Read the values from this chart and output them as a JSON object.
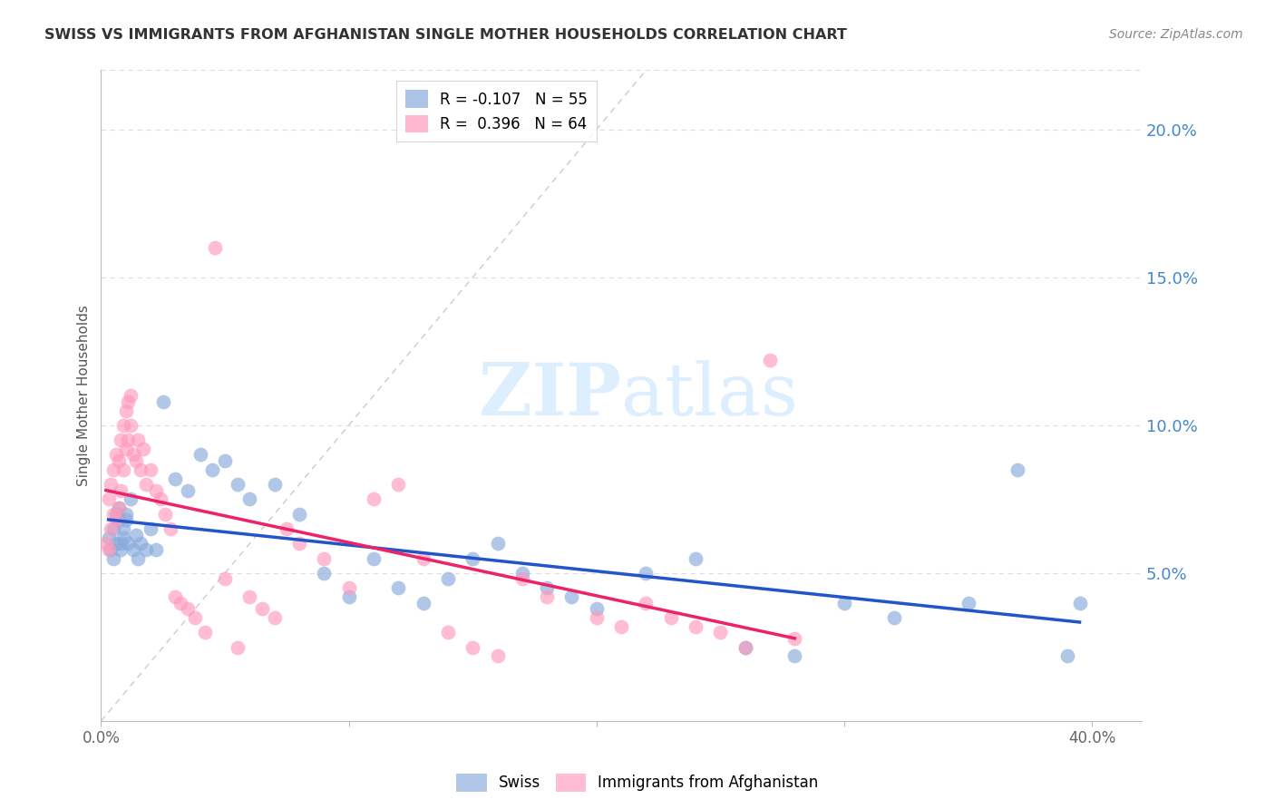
{
  "title": "SWISS VS IMMIGRANTS FROM AFGHANISTAN SINGLE MOTHER HOUSEHOLDS CORRELATION CHART",
  "source": "Source: ZipAtlas.com",
  "ylabel": "Single Mother Households",
  "ytick_labels": [
    "20.0%",
    "15.0%",
    "10.0%",
    "5.0%"
  ],
  "ytick_values": [
    0.2,
    0.15,
    0.1,
    0.05
  ],
  "xlim": [
    0.0,
    0.42
  ],
  "ylim": [
    0.0,
    0.22
  ],
  "xticks": [
    0.0,
    0.1,
    0.2,
    0.3,
    0.4
  ],
  "xtick_labels": [
    "0.0%",
    "",
    "",
    "",
    "40.0%"
  ],
  "swiss_color": "#88aadd",
  "afghan_color": "#ff99bb",
  "swiss_line_color": "#2255cc",
  "afghan_line_color": "#ee2266",
  "diagonal_line_color": "#cccccc",
  "grid_color": "#dddddd",
  "title_color": "#333333",
  "right_axis_color": "#4488cc",
  "watermark_color": "#ddeeff",
  "legend_r1": "R = -0.107",
  "legend_n1": "N = 55",
  "legend_r2": "R =  0.396",
  "legend_n2": "N = 64",
  "swiss_scatter_x": [
    0.003,
    0.004,
    0.005,
    0.005,
    0.006,
    0.006,
    0.007,
    0.007,
    0.008,
    0.008,
    0.009,
    0.009,
    0.01,
    0.01,
    0.011,
    0.012,
    0.013,
    0.014,
    0.015,
    0.016,
    0.018,
    0.02,
    0.022,
    0.025,
    0.03,
    0.035,
    0.04,
    0.045,
    0.05,
    0.055,
    0.06,
    0.07,
    0.08,
    0.09,
    0.1,
    0.11,
    0.12,
    0.13,
    0.14,
    0.15,
    0.16,
    0.17,
    0.18,
    0.19,
    0.2,
    0.22,
    0.24,
    0.26,
    0.28,
    0.3,
    0.32,
    0.35,
    0.37,
    0.39,
    0.395
  ],
  "swiss_scatter_y": [
    0.062,
    0.058,
    0.065,
    0.055,
    0.07,
    0.06,
    0.068,
    0.072,
    0.058,
    0.06,
    0.065,
    0.062,
    0.07,
    0.068,
    0.06,
    0.075,
    0.058,
    0.063,
    0.055,
    0.06,
    0.058,
    0.065,
    0.058,
    0.108,
    0.082,
    0.078,
    0.09,
    0.085,
    0.088,
    0.08,
    0.075,
    0.08,
    0.07,
    0.05,
    0.042,
    0.055,
    0.045,
    0.04,
    0.048,
    0.055,
    0.06,
    0.05,
    0.045,
    0.042,
    0.038,
    0.05,
    0.055,
    0.025,
    0.022,
    0.04,
    0.035,
    0.04,
    0.085,
    0.022,
    0.04
  ],
  "afghan_scatter_x": [
    0.002,
    0.003,
    0.003,
    0.004,
    0.004,
    0.005,
    0.005,
    0.006,
    0.006,
    0.007,
    0.007,
    0.008,
    0.008,
    0.009,
    0.009,
    0.01,
    0.01,
    0.011,
    0.011,
    0.012,
    0.012,
    0.013,
    0.014,
    0.015,
    0.016,
    0.017,
    0.018,
    0.02,
    0.022,
    0.024,
    0.026,
    0.028,
    0.03,
    0.032,
    0.035,
    0.038,
    0.042,
    0.046,
    0.05,
    0.055,
    0.06,
    0.065,
    0.07,
    0.075,
    0.08,
    0.09,
    0.1,
    0.11,
    0.12,
    0.13,
    0.14,
    0.15,
    0.16,
    0.17,
    0.18,
    0.2,
    0.21,
    0.22,
    0.23,
    0.24,
    0.25,
    0.26,
    0.27,
    0.28
  ],
  "afghan_scatter_y": [
    0.06,
    0.058,
    0.075,
    0.065,
    0.08,
    0.07,
    0.085,
    0.068,
    0.09,
    0.072,
    0.088,
    0.078,
    0.095,
    0.085,
    0.1,
    0.092,
    0.105,
    0.108,
    0.095,
    0.11,
    0.1,
    0.09,
    0.088,
    0.095,
    0.085,
    0.092,
    0.08,
    0.085,
    0.078,
    0.075,
    0.07,
    0.065,
    0.042,
    0.04,
    0.038,
    0.035,
    0.03,
    0.16,
    0.048,
    0.025,
    0.042,
    0.038,
    0.035,
    0.065,
    0.06,
    0.055,
    0.045,
    0.075,
    0.08,
    0.055,
    0.03,
    0.025,
    0.022,
    0.048,
    0.042,
    0.035,
    0.032,
    0.04,
    0.035,
    0.032,
    0.03,
    0.025,
    0.122,
    0.028
  ]
}
